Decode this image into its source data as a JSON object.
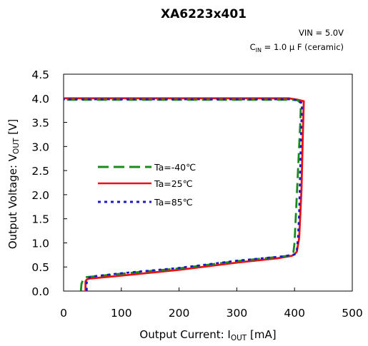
{
  "chart_data": {
    "type": "line",
    "title": "XA6223x401",
    "conditions": {
      "vin": "VIN = 5.0V",
      "cin_main": "C",
      "cin_sub": "IN",
      "cin_rest": " = 1.0 μ F (ceramic)"
    },
    "xlabel": {
      "main": "Output Current: I",
      "sub": "OUT",
      "rest": " [mA]"
    },
    "ylabel": {
      "main": "Output Voltage: V",
      "sub": "OUT",
      "rest": " [V]"
    },
    "xlim": [
      0,
      500
    ],
    "ylim": [
      0.0,
      4.5
    ],
    "x_ticks": [
      "0",
      "100",
      "200",
      "300",
      "400",
      "500"
    ],
    "y_ticks": [
      "0.0",
      "0.5",
      "1.0",
      "1.5",
      "2.0",
      "2.5",
      "3.0",
      "3.5",
      "4.0",
      "4.5"
    ],
    "grid": false,
    "legend_position": "center-left",
    "series": [
      {
        "name": "Ta=-40℃",
        "color": "#1a8a1a",
        "dash": "long-dash",
        "points": [
          [
            30,
            0.01
          ],
          [
            31,
            0.15
          ],
          [
            34,
            0.25
          ],
          [
            38,
            0.28
          ],
          [
            40,
            0.29
          ],
          [
            100,
            0.36
          ],
          [
            200,
            0.47
          ],
          [
            300,
            0.62
          ],
          [
            380,
            0.72
          ],
          [
            395,
            0.74
          ],
          [
            398,
            0.8
          ],
          [
            400,
            1.0
          ],
          [
            402,
            1.5
          ],
          [
            404,
            2.0
          ],
          [
            406,
            2.5
          ],
          [
            408,
            3.0
          ],
          [
            410,
            3.5
          ],
          [
            411,
            3.9
          ],
          [
            405,
            3.96
          ],
          [
            395,
            3.97
          ],
          [
            350,
            3.97
          ],
          [
            200,
            3.97
          ],
          [
            100,
            3.97
          ],
          [
            0,
            3.97
          ]
        ]
      },
      {
        "name": "Ta=25℃",
        "color": "#ee1111",
        "dash": "solid",
        "points": [
          [
            38,
            0.0
          ],
          [
            38,
            0.2
          ],
          [
            40,
            0.24
          ],
          [
            45,
            0.26
          ],
          [
            100,
            0.32
          ],
          [
            200,
            0.44
          ],
          [
            300,
            0.59
          ],
          [
            370,
            0.68
          ],
          [
            395,
            0.73
          ],
          [
            400,
            0.76
          ],
          [
            404,
            0.82
          ],
          [
            408,
            1.1
          ],
          [
            410,
            1.6
          ],
          [
            412,
            2.1
          ],
          [
            413,
            2.6
          ],
          [
            414,
            3.1
          ],
          [
            415,
            3.5
          ],
          [
            416,
            3.94
          ],
          [
            405,
            3.97
          ],
          [
            390,
            4.0
          ],
          [
            350,
            4.0
          ],
          [
            200,
            4.0
          ],
          [
            100,
            4.0
          ],
          [
            0,
            4.0
          ]
        ]
      },
      {
        "name": "Ta=85℃",
        "color": "#1a1acc",
        "dash": "dotted",
        "points": [
          [
            40,
            0.01
          ],
          [
            40,
            0.18
          ],
          [
            43,
            0.27
          ],
          [
            48,
            0.3
          ],
          [
            100,
            0.37
          ],
          [
            200,
            0.48
          ],
          [
            300,
            0.63
          ],
          [
            380,
            0.72
          ],
          [
            400,
            0.76
          ],
          [
            404,
            0.85
          ],
          [
            406,
            1.1
          ],
          [
            408,
            1.6
          ],
          [
            409,
            2.1
          ],
          [
            410,
            2.6
          ],
          [
            411,
            3.1
          ],
          [
            412,
            3.5
          ],
          [
            413,
            3.9
          ],
          [
            405,
            3.96
          ],
          [
            395,
            3.98
          ],
          [
            350,
            3.98
          ],
          [
            200,
            3.98
          ],
          [
            100,
            3.98
          ],
          [
            0,
            3.98
          ]
        ]
      }
    ]
  }
}
